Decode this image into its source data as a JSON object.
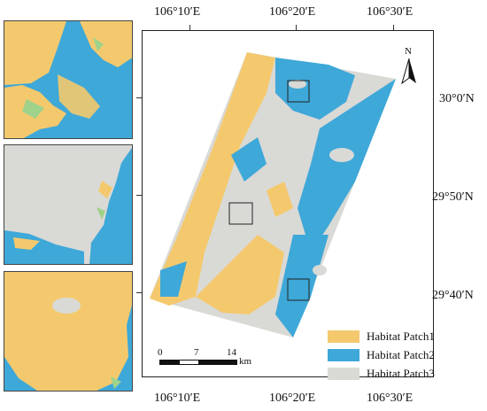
{
  "map": {
    "lon_labels": [
      "106°10′E",
      "106°20′E",
      "106°30′E"
    ],
    "lat_labels": [
      "30°0′N",
      "29°50′N",
      "29°40′N"
    ],
    "north_arrow": "N",
    "scale_bar": {
      "ticks": [
        "0",
        "7",
        "14"
      ],
      "unit": "km"
    }
  },
  "legend": [
    {
      "label": "Habitat Patch1",
      "color": "#f4c96e"
    },
    {
      "label": "Habitat Patch2",
      "color": "#3ea8d8"
    },
    {
      "label": "Habitat Patch3",
      "color": "#d9d9d6"
    }
  ],
  "colors": {
    "patch1": "#f4c96e",
    "patch2": "#3ea8d8",
    "patch3": "#d9d9d6",
    "green": "#9fd28a"
  }
}
